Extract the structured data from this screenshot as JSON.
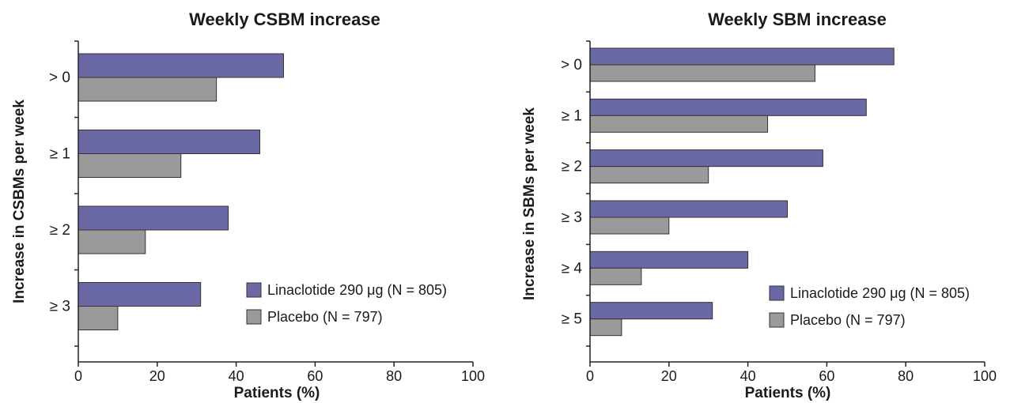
{
  "colors": {
    "linaclotide": "#6b69a5",
    "placebo": "#9a9a9a"
  },
  "chart_data": [
    {
      "type": "bar",
      "orientation": "horizontal",
      "title": "Weekly CSBM increase",
      "xlabel": "Patients (%)",
      "ylabel": "Increase in CSBMs per week",
      "xlim": [
        0,
        100
      ],
      "xticks": [
        "0",
        "20",
        "40",
        "60",
        "80",
        "100"
      ],
      "categories": [
        "> 0",
        "≥ 1",
        "≥ 2",
        "≥ 3"
      ],
      "series": [
        {
          "name": "Linaclotide 290 μg (N = 805)",
          "values": [
            52,
            46,
            38,
            31
          ]
        },
        {
          "name": "Placebo (N = 797)",
          "values": [
            35,
            26,
            17,
            10
          ]
        }
      ],
      "legend_position": "bottom-right"
    },
    {
      "type": "bar",
      "orientation": "horizontal",
      "title": "Weekly SBM increase",
      "xlabel": "Patients (%)",
      "ylabel": "Increase in SBMs per week",
      "xlim": [
        0,
        100
      ],
      "xticks": [
        "0",
        "20",
        "40",
        "60",
        "80",
        "100"
      ],
      "categories": [
        "> 0",
        "≥ 1",
        "≥ 2",
        "≥ 3",
        "≥ 4",
        "≥ 5"
      ],
      "series": [
        {
          "name": "Linaclotide 290 μg (N = 805)",
          "values": [
            77,
            70,
            59,
            50,
            40,
            31
          ]
        },
        {
          "name": "Placebo (N = 797)",
          "values": [
            57,
            45,
            30,
            20,
            13,
            8
          ]
        }
      ],
      "legend_position": "bottom-right"
    }
  ]
}
